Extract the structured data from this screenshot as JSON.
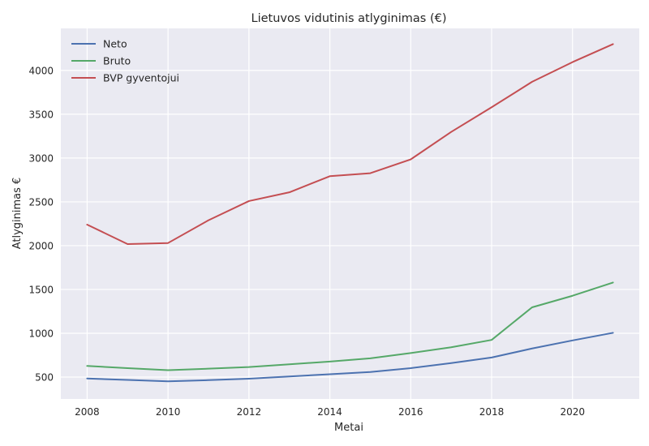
{
  "chart_data": {
    "type": "line",
    "title": "Lietuvos vidutinis atlyginimas (€)",
    "xlabel": "Metai",
    "ylabel": "Atlyginimas €",
    "x": [
      2008,
      2009,
      2010,
      2011,
      2012,
      2013,
      2014,
      2015,
      2016,
      2017,
      2018,
      2019,
      2020,
      2021
    ],
    "xlim": [
      2007.35,
      2021.65
    ],
    "ylim": [
      250,
      4480
    ],
    "xticks": [
      2008,
      2010,
      2012,
      2014,
      2016,
      2018,
      2020
    ],
    "yticks": [
      500,
      1000,
      1500,
      2000,
      2500,
      3000,
      3500,
      4000
    ],
    "grid": true,
    "legend_position": "top-left",
    "background": "#eaeaf2",
    "series": [
      {
        "name": "Neto",
        "color": "#4c72b0",
        "values": [
          484,
          467,
          451,
          465,
          482,
          507,
          532,
          558,
          602,
          660,
          723,
          826,
          918,
          1005
        ]
      },
      {
        "name": "Bruto",
        "color": "#55a868",
        "values": [
          627,
          602,
          578,
          596,
          615,
          646,
          677,
          714,
          774,
          840,
          924,
          1296,
          1428,
          1579
        ]
      },
      {
        "name": "BVP gyventojui",
        "color": "#c44e52",
        "values": [
          2240,
          2018,
          2030,
          2290,
          2509,
          2609,
          2793,
          2827,
          2985,
          3298,
          3580,
          3870,
          4095,
          4300
        ]
      }
    ]
  }
}
